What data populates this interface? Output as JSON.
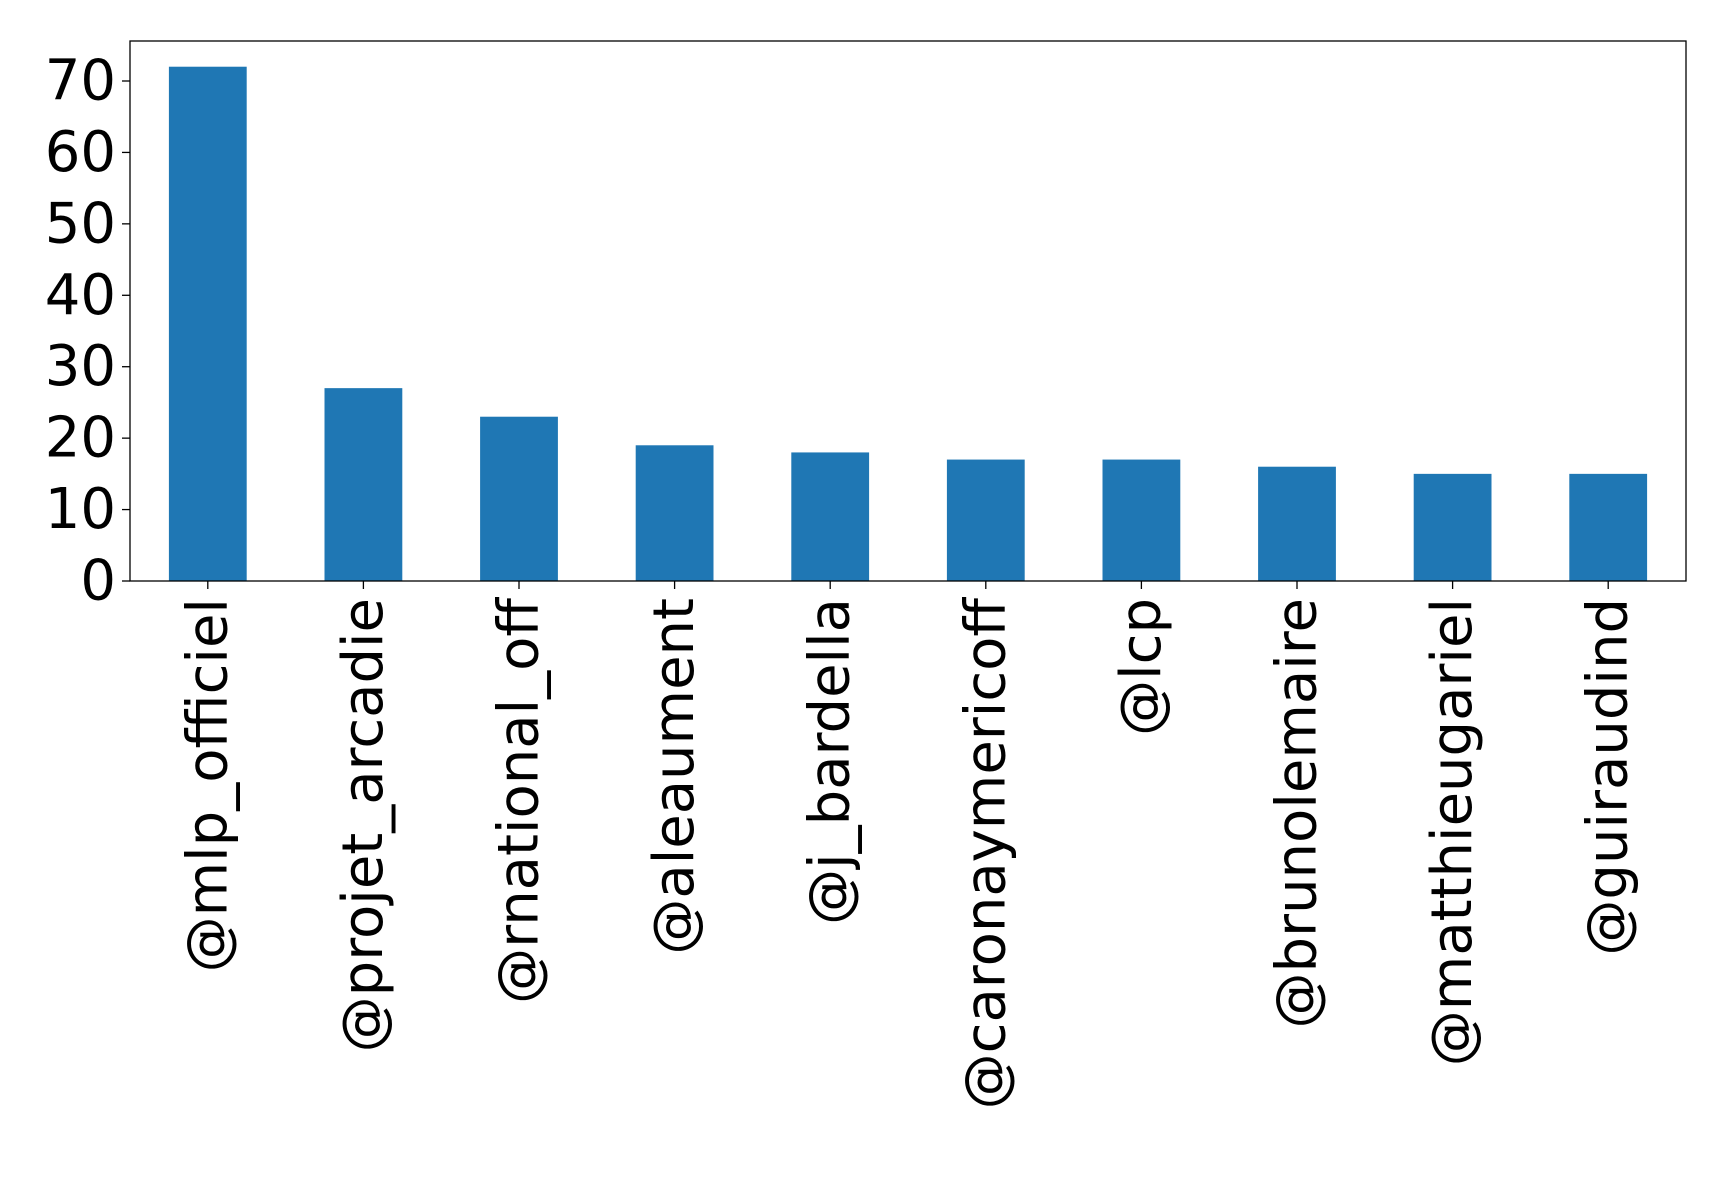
{
  "chart_data": {
    "type": "bar",
    "title": "",
    "xlabel": "",
    "ylabel": "",
    "categories": [
      "@mlp_officiel",
      "@projet_arcadie",
      "@rnational_off",
      "@aleaument",
      "@j_bardella",
      "@caronaymericoff",
      "@lcp",
      "@brunolemaire",
      "@matthieugariel",
      "@guiraudind"
    ],
    "values": [
      72,
      27,
      23,
      19,
      18,
      17,
      17,
      16,
      15,
      15
    ],
    "ylim": [
      0,
      75.6
    ],
    "yticks": [
      0,
      10,
      20,
      30,
      40,
      50,
      60,
      70
    ],
    "bar_color": "#1f77b4",
    "grid": false,
    "legend": "none"
  }
}
